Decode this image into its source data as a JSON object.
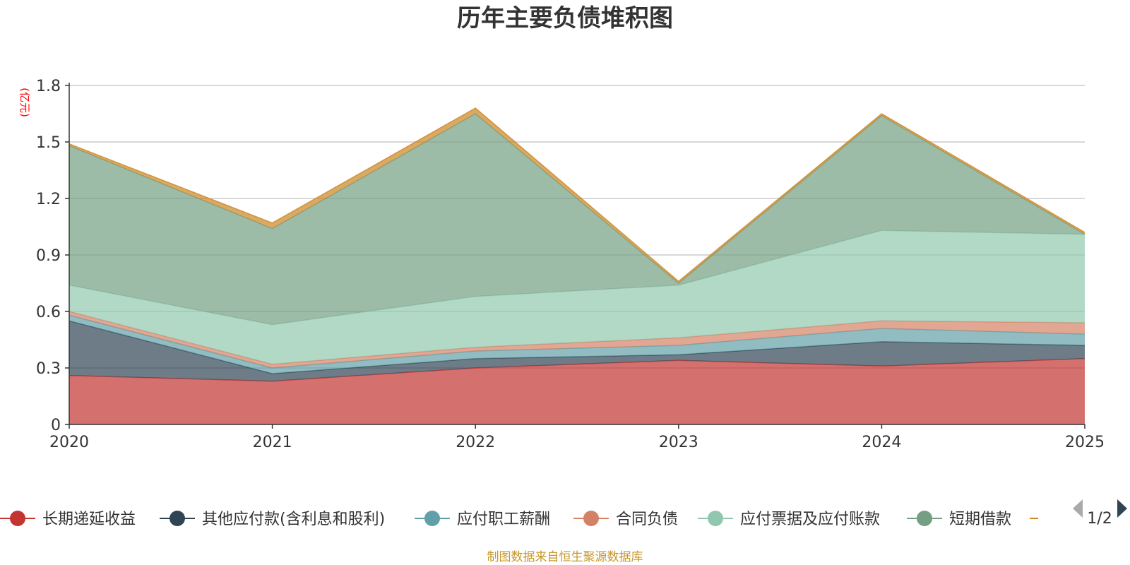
{
  "chart_data": {
    "type": "area",
    "stacked": true,
    "title": "历年主要负债堆积图",
    "ylabel": "(亿元)",
    "xlabel": "",
    "ylim": [
      0,
      1.8
    ],
    "yticks": [
      "0",
      "0.3",
      "0.6",
      "0.9",
      "1.2",
      "1.5",
      "1.8"
    ],
    "x": [
      "2020",
      "2021",
      "2022",
      "2023",
      "2024",
      "2025"
    ],
    "grid": true,
    "legend_position": "bottom",
    "series": [
      {
        "name": "长期递延收益",
        "color": "#c23531",
        "values": [
          0.26,
          0.23,
          0.3,
          0.34,
          0.31,
          0.35
        ]
      },
      {
        "name": "其他应付款(含利息和股利)",
        "color": "#2f4554",
        "values": [
          0.29,
          0.04,
          0.05,
          0.03,
          0.13,
          0.07
        ]
      },
      {
        "name": "应付职工薪酬",
        "color": "#61a0a8",
        "values": [
          0.03,
          0.03,
          0.04,
          0.05,
          0.07,
          0.06
        ]
      },
      {
        "name": "合同负债",
        "color": "#d48265",
        "values": [
          0.02,
          0.02,
          0.02,
          0.04,
          0.04,
          0.06
        ]
      },
      {
        "name": "应付票据及应付账款",
        "color": "#91c7ae",
        "values": [
          0.14,
          0.21,
          0.27,
          0.28,
          0.48,
          0.47
        ]
      },
      {
        "name": "短期借款",
        "color": "#749f83",
        "values": [
          0.74,
          0.51,
          0.97,
          0.01,
          0.61,
          0.0
        ]
      },
      {
        "name": "",
        "color": "#ca8622",
        "values": [
          0.01,
          0.03,
          0.03,
          0.01,
          0.01,
          0.01
        ]
      }
    ]
  },
  "legend": {
    "page": "1/2"
  },
  "footer": {
    "source": "制图数据来自恒生聚源数据库"
  }
}
